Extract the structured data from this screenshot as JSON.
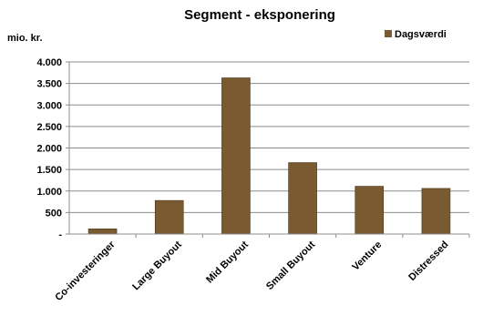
{
  "chart_data": {
    "type": "bar",
    "title": "Segment - eksponering",
    "unit_label": "mio. kr.",
    "categories": [
      "Co-investeringer",
      "Large Buyout",
      "Mid Buyout",
      "Small Buyout",
      "Venture",
      "Distressed"
    ],
    "series": [
      {
        "name": "Dagsværdi",
        "values": [
          120,
          780,
          3630,
          1660,
          1110,
          1060
        ],
        "color": "#7a5a30"
      }
    ],
    "y_ticks": [
      {
        "value": 0,
        "label": "-"
      },
      {
        "value": 500,
        "label": "500"
      },
      {
        "value": 1000,
        "label": "1.000"
      },
      {
        "value": 1500,
        "label": "1.500"
      },
      {
        "value": 2000,
        "label": "2.000"
      },
      {
        "value": 2500,
        "label": "2.500"
      },
      {
        "value": 3000,
        "label": "3.000"
      },
      {
        "value": 3500,
        "label": "3.500"
      },
      {
        "value": 4000,
        "label": "4.000"
      }
    ],
    "ylim": [
      0,
      4000
    ],
    "grid": true,
    "legend_position": "top-right"
  }
}
